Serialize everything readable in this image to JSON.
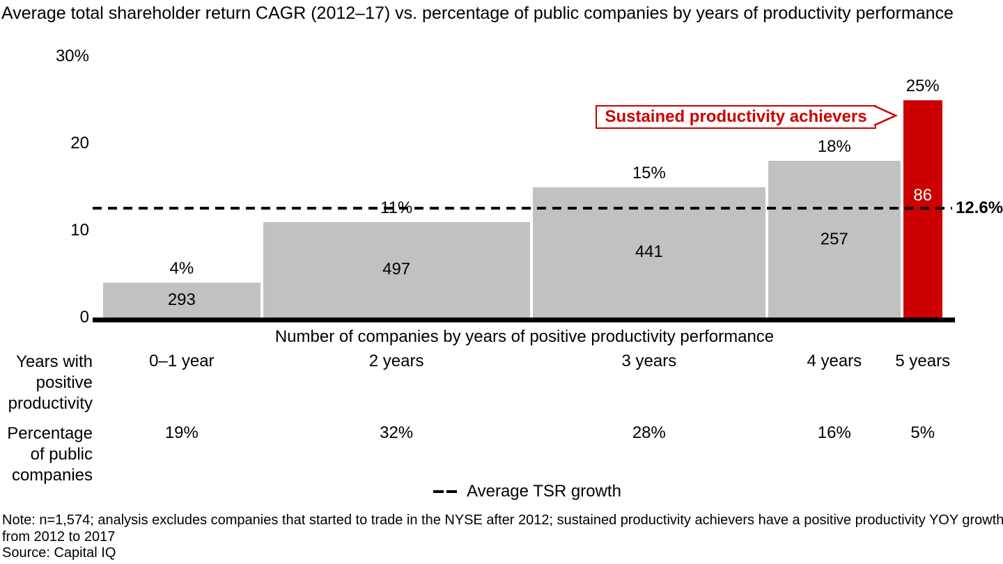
{
  "title": "Average total shareholder return CAGR (2012–17) vs. percentage of public companies by years of productivity performance",
  "chart_data": {
    "type": "bar",
    "variant": "variable-width-marimekko",
    "title": "Average total shareholder return CAGR (2012–17) vs. percentage of public companies by years of productivity performance",
    "xlabel": "Number of companies by years of positive productivity performance",
    "ylabel": "",
    "ylim": [
      0,
      30
    ],
    "y_ticks": [
      "30%",
      "20",
      "10",
      "0"
    ],
    "y_tick_values": [
      30,
      20,
      10,
      0
    ],
    "grid": false,
    "bars": [
      {
        "label": "0–1 year",
        "tsr_pct": 4,
        "tsr_label": "4%",
        "count": "293",
        "share_pct": 19,
        "share_label": "19%",
        "highlight": false
      },
      {
        "label": "2 years",
        "tsr_pct": 11,
        "tsr_label": "11%",
        "count": "497",
        "share_pct": 32,
        "share_label": "32%",
        "highlight": false
      },
      {
        "label": "3 years",
        "tsr_pct": 15,
        "tsr_label": "15%",
        "count": "441",
        "share_pct": 28,
        "share_label": "28%",
        "highlight": false
      },
      {
        "label": "4 years",
        "tsr_pct": 18,
        "tsr_label": "18%",
        "count": "257",
        "share_pct": 16,
        "share_label": "16%",
        "highlight": false
      },
      {
        "label": "5 years",
        "tsr_pct": 25,
        "tsr_label": "25%",
        "count": "86",
        "share_pct": 5,
        "share_label": "5%",
        "highlight": true
      }
    ],
    "row_headers": {
      "years_line1": "Years with",
      "years_line2": "positive",
      "years_line3": "productivity",
      "share_line1": "Percentage",
      "share_line2": "of public",
      "share_line3": "companies"
    },
    "average_line": {
      "value": 12.6,
      "label": "12.6%",
      "legend_label": "Average TSR growth",
      "style": "dashed"
    },
    "callout": {
      "text": "Sustained productivity achievers"
    },
    "legend_position": "bottom-center",
    "colors": {
      "bar": "#c1c1c1",
      "highlight": "#cc0000",
      "axis": "#000000",
      "callout_text": "#cc0000"
    }
  },
  "note": {
    "line1": "Note: n=1,574; analysis excludes companies that started to trade in the NYSE after 2012; sustained productivity achievers have a positive productivity YOY growth",
    "line2": "from 2012 to 2017",
    "source": "Source: Capital IQ"
  }
}
